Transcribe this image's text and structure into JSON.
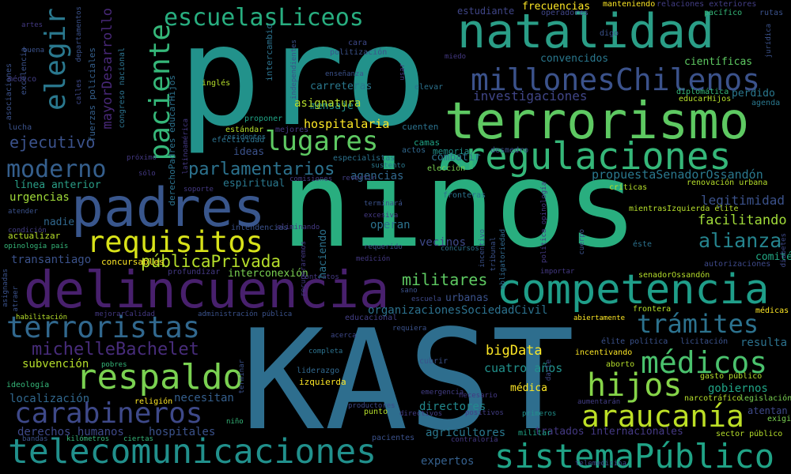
{
  "words": [
    {
      "text": "pro",
      "color": "#22928b"
    },
    {
      "text": "niños",
      "color": "#29ae7f"
    },
    {
      "text": "KAST",
      "color": "#2e6e8e"
    },
    {
      "text": "natalidad",
      "color": "#2a9e87"
    },
    {
      "text": "terrorismo",
      "color": "#5ec962"
    },
    {
      "text": "delincuencia",
      "color": "#48206d"
    },
    {
      "text": "competencia",
      "color": "#1f9e89"
    },
    {
      "text": "telecomunicaciones",
      "color": "#21908c"
    },
    {
      "text": "sistemaPúblico",
      "color": "#20a386"
    },
    {
      "text": "padres",
      "color": "#39568c"
    },
    {
      "text": "regulaciones",
      "color": "#35b779"
    },
    {
      "text": "millonesChilenos",
      "color": "#3b528b"
    },
    {
      "text": "escuelasLiceos",
      "color": "#28ae80"
    },
    {
      "text": "terroristas",
      "color": "#31688e"
    },
    {
      "text": "respaldo",
      "color": "#7ad151"
    },
    {
      "text": "carabineros",
      "color": "#3e4989"
    },
    {
      "text": "araucanía",
      "color": "#bddf26"
    },
    {
      "text": "hijos",
      "color": "#86d549"
    },
    {
      "text": "médicos",
      "color": "#4ac16d"
    },
    {
      "text": "trámites",
      "color": "#2c728e"
    },
    {
      "text": "requisitos",
      "color": "#d8e219"
    },
    {
      "text": "lugares",
      "color": "#5ec962"
    },
    {
      "text": "paciente",
      "color": "#35b779"
    },
    {
      "text": "elegir",
      "color": "#2a788e"
    },
    {
      "text": "moderno",
      "color": "#355f8d"
    },
    {
      "text": "michelleBachelet",
      "color": "#472c7a"
    },
    {
      "text": "parlamentarios",
      "color": "#2c728e"
    },
    {
      "text": "públicaPrivada",
      "color": "#b5de2b"
    },
    {
      "text": "alianza",
      "color": "#25848e"
    },
    {
      "text": "militares",
      "color": "#5ec962"
    },
    {
      "text": "ejecutivo",
      "color": "#3b528b"
    },
    {
      "text": "mayorDesarrollo",
      "color": "#482878"
    },
    {
      "text": "investigaciones",
      "color": "#404688"
    },
    {
      "text": "hospitalaria",
      "color": "#fde725"
    },
    {
      "text": "facilitando",
      "color": "#a0da39"
    },
    {
      "text": "bigData",
      "color": "#fde725"
    },
    {
      "text": "propuestaSenadorOssandón",
      "color": "#2a788e"
    },
    {
      "text": "legitimidad",
      "color": "#3b528b"
    },
    {
      "text": "carreteras",
      "color": "#2a788e"
    },
    {
      "text": "frecuencias",
      "color": "#fde725"
    },
    {
      "text": "estudiante",
      "color": "#404688"
    },
    {
      "text": "cuatro años",
      "color": "#21918c"
    },
    {
      "text": "organizacionesSociedadCivil",
      "color": "#2c728e"
    },
    {
      "text": "derechos humanos",
      "color": "#3e4989"
    },
    {
      "text": "agricultores",
      "color": "#2a788e"
    },
    {
      "text": "expertos",
      "color": "#35608d"
    },
    {
      "text": "directores",
      "color": "#23898e"
    },
    {
      "text": "subvención",
      "color": "#b5de2b"
    },
    {
      "text": "localización",
      "color": "#31688e"
    },
    {
      "text": "hospitales",
      "color": "#3b528b"
    },
    {
      "text": "necesitan",
      "color": "#355f8d"
    },
    {
      "text": "tratados internacionales",
      "color": "#443983"
    },
    {
      "text": "gobiernos",
      "color": "#20a486"
    },
    {
      "text": "resulta",
      "color": "#2c728e"
    },
    {
      "text": "atentan",
      "color": "#3e4989"
    },
    {
      "text": "transantiago",
      "color": "#3b528b"
    },
    {
      "text": "urgencias",
      "color": "#a0da39"
    },
    {
      "text": "línea anterior",
      "color": "#2a9e87"
    },
    {
      "text": "nadie",
      "color": "#31688e"
    },
    {
      "text": "actualizar",
      "color": "#b5de2b"
    },
    {
      "text": "concursables",
      "color": "#fde725"
    },
    {
      "text": "médica",
      "color": "#fde725"
    },
    {
      "text": "izquierda",
      "color": "#fde725"
    },
    {
      "text": "vecinos",
      "color": "#3e4989"
    },
    {
      "text": "operan",
      "color": "#2c728e"
    },
    {
      "text": "agencias",
      "color": "#31688e"
    },
    {
      "text": "mensaje",
      "color": "#21918c"
    },
    {
      "text": "asignatura",
      "color": "#b5de2b"
    },
    {
      "text": "espiritual",
      "color": "#2a788e"
    },
    {
      "text": "ideas",
      "color": "#3b528b"
    },
    {
      "text": "combatir",
      "color": "#2c728e"
    },
    {
      "text": "convencidos",
      "color": "#2a788e"
    },
    {
      "text": "científicas",
      "color": "#5ec962"
    },
    {
      "text": "perdido",
      "color": "#2a788e"
    },
    {
      "text": "comité",
      "color": "#22a884"
    },
    {
      "text": "interconexión",
      "color": "#7ad151"
    },
    {
      "text": "urbanas",
      "color": "#3b528b"
    },
    {
      "text": "manteniendo",
      "color": "#fde725"
    },
    {
      "text": "relaciones exteriores",
      "color": "#433e85"
    },
    {
      "text": "pacífico",
      "color": "#35b779"
    },
    {
      "text": "rutas",
      "color": "#3b528b"
    },
    {
      "text": "operadores",
      "color": "#404688"
    },
    {
      "text": "digo",
      "color": "#3b528b"
    },
    {
      "text": "educarHijos",
      "color": "#b5de2b"
    },
    {
      "text": "agenda",
      "color": "#2a788e"
    },
    {
      "text": "diplomática",
      "color": "#35b779"
    },
    {
      "text": "estándar",
      "color": "#b5de2b"
    },
    {
      "text": "efectividad",
      "color": "#2c728e"
    },
    {
      "text": "proponer",
      "color": "#20a486"
    },
    {
      "text": "mejores",
      "color": "#443983"
    },
    {
      "text": "especialistas",
      "color": "#2c728e"
    },
    {
      "text": "camas",
      "color": "#20a486"
    },
    {
      "text": "actos",
      "color": "#31688e"
    },
    {
      "text": "memoria",
      "color": "#21918c"
    },
    {
      "text": "desmedro",
      "color": "#3b528b"
    },
    {
      "text": "elección",
      "color": "#7ad151"
    },
    {
      "text": "comisiones",
      "color": "#433e85"
    },
    {
      "text": "revertir",
      "color": "#433e85"
    },
    {
      "text": "sustento",
      "color": "#2a788e"
    },
    {
      "text": "inglés",
      "color": "#b5de2b"
    },
    {
      "text": "residentes",
      "color": "#2c728e"
    },
    {
      "text": "cuenten",
      "color": "#2c728e"
    },
    {
      "text": "enseñanza",
      "color": "#3b528b"
    },
    {
      "text": "politización",
      "color": "#3b528b"
    },
    {
      "text": "elevar",
      "color": "#2c728e"
    },
    {
      "text": "miedo",
      "color": "#443983"
    },
    {
      "text": "cara",
      "color": "#3e4989"
    },
    {
      "text": "renovación urbana",
      "color": "#b5de2b"
    },
    {
      "text": "críticas",
      "color": "#b5de2b"
    },
    {
      "text": "mientrasIzquierda élite",
      "color": "#b5de2b"
    },
    {
      "text": "senadorOssandón",
      "color": "#b5de2b"
    },
    {
      "text": "autorizaciones",
      "color": "#3e4989"
    },
    {
      "text": "médicas",
      "color": "#fde725"
    },
    {
      "text": "frontera",
      "color": "#b5de2b"
    },
    {
      "text": "abiertamente",
      "color": "#fde725"
    },
    {
      "text": "licitación",
      "color": "#3b528b"
    },
    {
      "text": "élite política",
      "color": "#3b528b"
    },
    {
      "text": "incentivando",
      "color": "#fde725"
    },
    {
      "text": "aborto",
      "color": "#b5de2b"
    },
    {
      "text": "gasto público",
      "color": "#b5de2b"
    },
    {
      "text": "narcotráfico",
      "color": "#b5de2b"
    },
    {
      "text": "legislación",
      "color": "#7ad151"
    },
    {
      "text": "exigir",
      "color": "#7ad151"
    },
    {
      "text": "sector público",
      "color": "#b5de2b"
    },
    {
      "text": "aumentarán",
      "color": "#433e85"
    },
    {
      "text": "positivos",
      "color": "#433e85"
    },
    {
      "text": "primeros",
      "color": "#21918c"
    },
    {
      "text": "militar",
      "color": "#20a486"
    },
    {
      "text": "pacientes",
      "color": "#3b528b"
    },
    {
      "text": "productores",
      "color": "#3e4989"
    },
    {
      "text": "directivos",
      "color": "#433e85"
    },
    {
      "text": "contraloría",
      "color": "#443983"
    },
    {
      "text": "emergencia",
      "color": "#433e85"
    },
    {
      "text": "punto",
      "color": "#b5de2b"
    },
    {
      "text": "liderazgo",
      "color": "#31688e"
    },
    {
      "text": "completa",
      "color": "#2c728e"
    },
    {
      "text": "acerca",
      "color": "#3e4989"
    },
    {
      "text": "requiera",
      "color": "#3b528b"
    },
    {
      "text": "cubrir",
      "color": "#3b528b"
    },
    {
      "text": "sano",
      "color": "#3b528b"
    },
    {
      "text": "escuela",
      "color": "#3e4989"
    },
    {
      "text": "educacional",
      "color": "#433e85"
    },
    {
      "text": "administración pública",
      "color": "#3b528b"
    },
    {
      "text": "mejorarCalidad",
      "color": "#443983"
    },
    {
      "text": "habilitación",
      "color": "#b5de2b"
    },
    {
      "text": "contratos",
      "color": "#443983"
    },
    {
      "text": "recuperaremos",
      "color": "#443983"
    },
    {
      "text": "concursos",
      "color": "#2c728e"
    },
    {
      "text": "requerido",
      "color": "#3b528b"
    },
    {
      "text": "medición",
      "color": "#443983"
    },
    {
      "text": "excesiva",
      "color": "#443983"
    },
    {
      "text": "terminará",
      "color": "#3b528b"
    },
    {
      "text": "tribunal",
      "color": "#3b528b"
    },
    {
      "text": "incentivo",
      "color": "#3b528b"
    },
    {
      "text": "obligatoriedad",
      "color": "#31688e"
    },
    {
      "text": "fronteras",
      "color": "#2c728e"
    },
    {
      "text": "éste",
      "color": "#2c728e"
    },
    {
      "text": "cuerpo",
      "color": "#3b528b"
    },
    {
      "text": "importar",
      "color": "#443983"
    },
    {
      "text": "haciendo",
      "color": "#2c728e"
    },
    {
      "text": "intendencias",
      "color": "#3b528b"
    },
    {
      "text": "eliminando",
      "color": "#443983"
    },
    {
      "text": "profundizar",
      "color": "#443983"
    },
    {
      "text": "opinología país",
      "color": "#35b779"
    },
    {
      "text": "condición",
      "color": "#433e85"
    },
    {
      "text": "atender",
      "color": "#3b528b"
    },
    {
      "text": "soporte",
      "color": "#443983"
    },
    {
      "text": "latinoamérica",
      "color": "#443983"
    },
    {
      "text": "próximo",
      "color": "#443983"
    },
    {
      "text": "sólo",
      "color": "#443983"
    },
    {
      "text": "ideología",
      "color": "#35b779"
    },
    {
      "text": "religión",
      "color": "#fde725"
    },
    {
      "text": "bandas",
      "color": "#3b528b"
    },
    {
      "text": "kilómetros",
      "color": "#35b779"
    },
    {
      "text": "ciertas",
      "color": "#35b779"
    },
    {
      "text": "pobres",
      "color": "#35b779"
    },
    {
      "text": "asociaciones",
      "color": "#3b528b"
    },
    {
      "text": "excelencia",
      "color": "#3b528b"
    },
    {
      "text": "médico",
      "color": "#433e85"
    },
    {
      "text": "lucha",
      "color": "#3b528b"
    },
    {
      "text": "artes",
      "color": "#443983"
    },
    {
      "text": "buena",
      "color": "#3b528b"
    },
    {
      "text": "calles",
      "color": "#3e4989"
    },
    {
      "text": "departamentos",
      "color": "#3b528b"
    },
    {
      "text": "fuerzas policiales",
      "color": "#35608d"
    },
    {
      "text": "congreso nacional",
      "color": "#2c728e"
    },
    {
      "text": "derechoPadres educarHijos",
      "color": "#2c728e"
    },
    {
      "text": "intercambio",
      "color": "#2c728e"
    },
    {
      "text": "independientes",
      "color": "#3b528b"
    },
    {
      "text": "usar",
      "color": "#443983"
    },
    {
      "text": "jurídica",
      "color": "#3b528b"
    },
    {
      "text": "diabetes",
      "color": "#3e4989"
    },
    {
      "text": "asignadas",
      "color": "#3b528b"
    },
    {
      "text": "atraer",
      "color": "#3b528b"
    },
    {
      "text": "darle",
      "color": "#3e4989"
    },
    {
      "text": "terminar",
      "color": "#3b528b"
    },
    {
      "text": "niño",
      "color": "#35b779"
    },
    {
      "text": "necesario",
      "color": "#443983"
    },
    {
      "text": "telemedicina",
      "color": "#3e4989"
    },
    {
      "text": "política opinología",
      "color": "#443983"
    }
  ]
}
